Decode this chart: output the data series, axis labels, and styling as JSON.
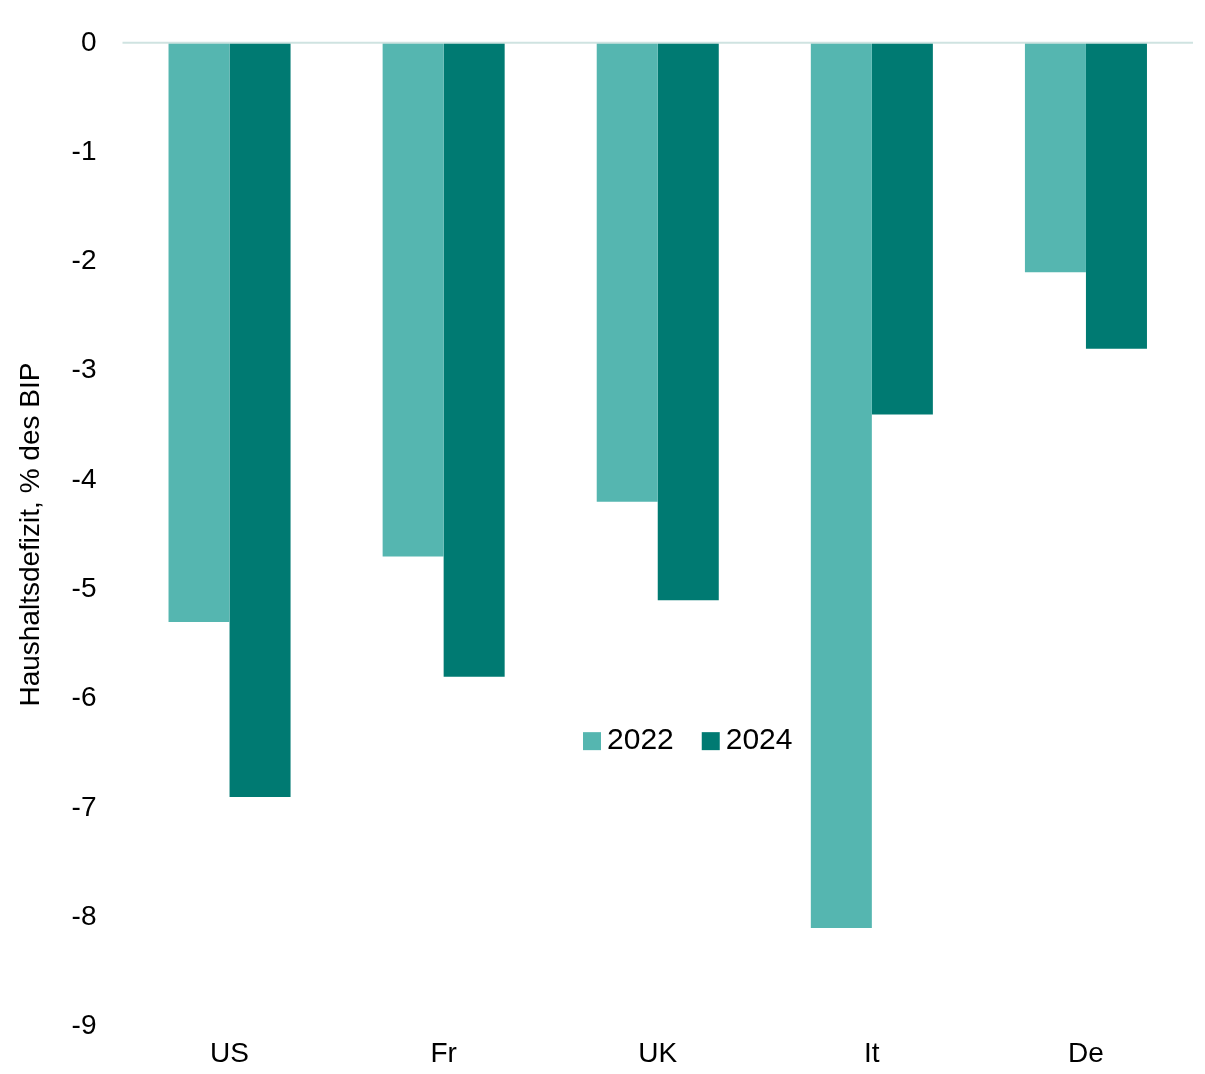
{
  "chart_data": {
    "type": "bar",
    "ylabel": "Haushaltsdefizit, % des BIP",
    "categories": [
      "US",
      "Fr",
      "UK",
      "It",
      "De"
    ],
    "series": [
      {
        "name": "2022",
        "color": "#55b6b0",
        "values": [
          -5.3,
          -4.7,
          -4.2,
          -8.1,
          -2.1
        ]
      },
      {
        "name": "2024",
        "color": "#007a72",
        "values": [
          -6.9,
          -5.8,
          -5.1,
          -3.4,
          -2.8
        ]
      }
    ],
    "ylim": [
      -9,
      0
    ],
    "yticks": [
      0,
      -1,
      -2,
      -3,
      -4,
      -5,
      -6,
      -7,
      -8,
      -9
    ],
    "grid": false,
    "legend": "center"
  }
}
